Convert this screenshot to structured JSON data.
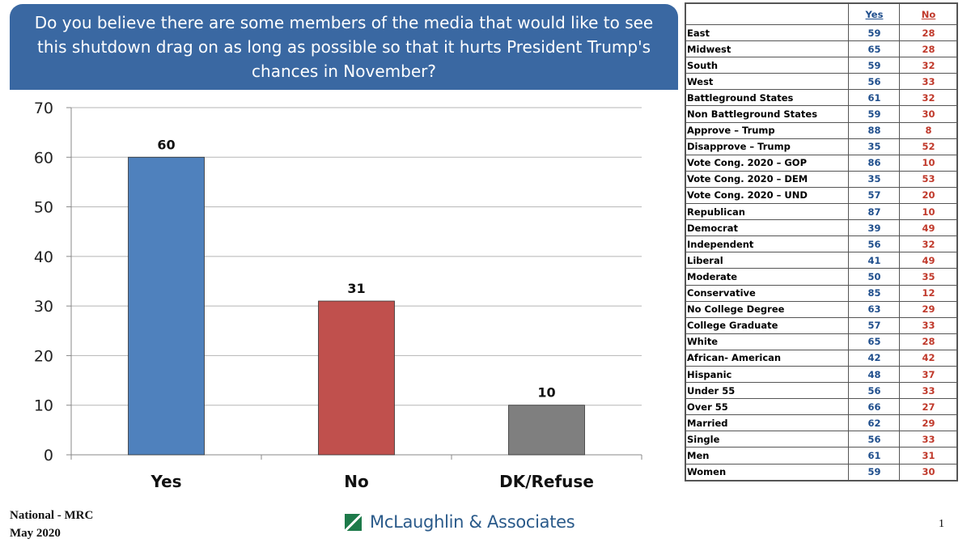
{
  "question": "Do you believe there are some members of the media that would like to see this shutdown drag on as long as possible so that it hurts President Trump's chances in November?",
  "chart_data": {
    "type": "bar",
    "categories": [
      "Yes",
      "No",
      "DK/Refuse"
    ],
    "values": [
      60,
      31,
      10
    ],
    "colors": [
      "#4f81bd",
      "#c0504d",
      "#7f7f7f"
    ],
    "ylim": [
      0,
      70
    ],
    "yticks": [
      0,
      10,
      20,
      30,
      40,
      50,
      60,
      70
    ],
    "grid": true
  },
  "table": {
    "headers": {
      "yes": "Yes",
      "no": "No"
    },
    "rows": [
      {
        "label": "East",
        "yes": "59",
        "no": "28"
      },
      {
        "label": "Midwest",
        "yes": "65",
        "no": "28"
      },
      {
        "label": "South",
        "yes": "59",
        "no": "32"
      },
      {
        "label": "West",
        "yes": "56",
        "no": "33"
      },
      {
        "label": "Battleground States",
        "yes": "61",
        "no": "32"
      },
      {
        "label": "Non Battleground States",
        "yes": "59",
        "no": "30"
      },
      {
        "label": "Approve – Trump",
        "yes": "88",
        "no": "8"
      },
      {
        "label": "Disapprove – Trump",
        "yes": "35",
        "no": "52"
      },
      {
        "label": "Vote Cong. 2020 – GOP",
        "yes": "86",
        "no": "10"
      },
      {
        "label": "Vote Cong. 2020 – DEM",
        "yes": "35",
        "no": "53"
      },
      {
        "label": "Vote Cong. 2020 – UND",
        "yes": "57",
        "no": "20"
      },
      {
        "label": "Republican",
        "yes": "87",
        "no": "10"
      },
      {
        "label": "Democrat",
        "yes": "39",
        "no": "49"
      },
      {
        "label": "Independent",
        "yes": "56",
        "no": "32"
      },
      {
        "label": "Liberal",
        "yes": "41",
        "no": "49"
      },
      {
        "label": "Moderate",
        "yes": "50",
        "no": "35"
      },
      {
        "label": "Conservative",
        "yes": "85",
        "no": "12"
      },
      {
        "label": "No College Degree",
        "yes": "63",
        "no": "29"
      },
      {
        "label": "College Graduate",
        "yes": "57",
        "no": "33"
      },
      {
        "label": "White",
        "yes": "65",
        "no": "28"
      },
      {
        "label": "African- American",
        "yes": "42",
        "no": "42"
      },
      {
        "label": "Hispanic",
        "yes": "48",
        "no": "37"
      },
      {
        "label": "Under 55",
        "yes": "56",
        "no": "33"
      },
      {
        "label": "Over 55",
        "yes": "66",
        "no": "27"
      },
      {
        "label": "Married",
        "yes": "62",
        "no": "29"
      },
      {
        "label": "Single",
        "yes": "56",
        "no": "33"
      },
      {
        "label": "Men",
        "yes": "61",
        "no": "31"
      },
      {
        "label": "Women",
        "yes": "59",
        "no": "30"
      }
    ]
  },
  "footer": {
    "line1": "National - MRC",
    "line2": "May 2020",
    "logo": "McLaughlin & Associates",
    "page": "1"
  }
}
